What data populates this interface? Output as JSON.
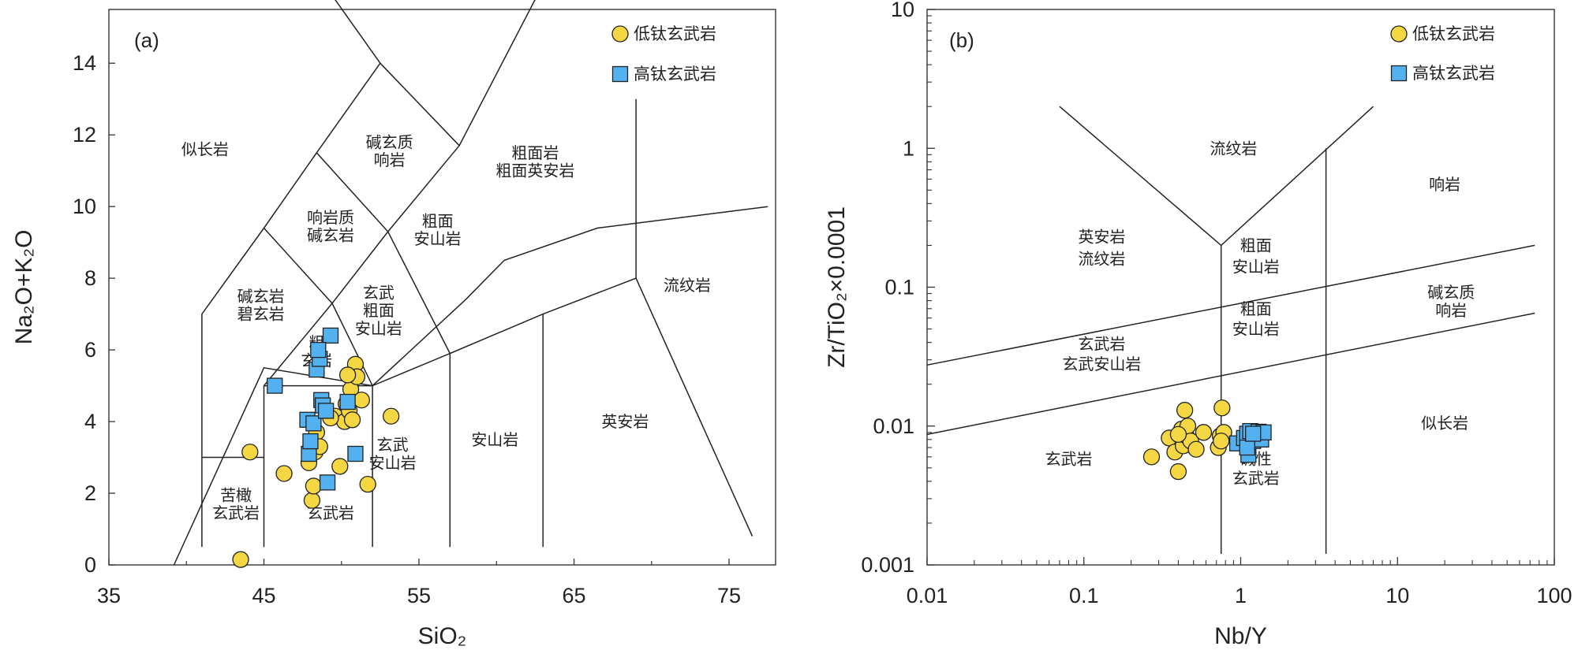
{
  "colors": {
    "low_ti": "#f5d743",
    "high_ti": "#52b1ee",
    "stroke": "#222222"
  },
  "legend": {
    "low_ti": "低钛玄武岩",
    "high_ti": "高钛玄武岩"
  },
  "chart_data": [
    {
      "type": "scatter",
      "panel": "(a)",
      "title": "",
      "xlabel": "SiO₂",
      "ylabel": "Na₂O+K₂O",
      "xlim": [
        35,
        78
      ],
      "ylim": [
        0,
        15.5
      ],
      "xticks": [
        "35",
        "45",
        "55",
        "65",
        "75"
      ],
      "yticks": [
        "0",
        "2",
        "4",
        "6",
        "8",
        "10",
        "12",
        "14"
      ],
      "field_labels": [
        {
          "text": "似长岩",
          "x": 41.2,
          "y": 11.6
        },
        {
          "text": "碱玄质",
          "x": 53.1,
          "y": 11.8
        },
        {
          "text": "响岩",
          "x": 53.1,
          "y": 11.3
        },
        {
          "text": "粗面岩",
          "x": 62.5,
          "y": 11.5
        },
        {
          "text": "粗面英安岩",
          "x": 62.5,
          "y": 11.0
        },
        {
          "text": "响岩质",
          "x": 49.3,
          "y": 9.7
        },
        {
          "text": "碱玄岩",
          "x": 49.3,
          "y": 9.2
        },
        {
          "text": "粗面",
          "x": 56.2,
          "y": 9.6
        },
        {
          "text": "安山岩",
          "x": 56.2,
          "y": 9.1
        },
        {
          "text": "碱玄岩",
          "x": 44.8,
          "y": 7.5
        },
        {
          "text": "碧玄岩",
          "x": 44.8,
          "y": 7.0
        },
        {
          "text": "玄武",
          "x": 52.4,
          "y": 7.6
        },
        {
          "text": "粗面",
          "x": 52.4,
          "y": 7.1
        },
        {
          "text": "安山岩",
          "x": 52.4,
          "y": 6.6
        },
        {
          "text": "粗",
          "x": 48.4,
          "y": 6.2
        },
        {
          "text": "玄岩",
          "x": 48.4,
          "y": 5.7
        },
        {
          "text": "流纹岩",
          "x": 72.3,
          "y": 7.8
        },
        {
          "text": "英安岩",
          "x": 68.3,
          "y": 4.0
        },
        {
          "text": "安山岩",
          "x": 59.9,
          "y": 3.5
        },
        {
          "text": "玄武",
          "x": 53.3,
          "y": 3.35
        },
        {
          "text": "安山岩",
          "x": 53.3,
          "y": 2.85
        },
        {
          "text": "苦橄",
          "x": 43.2,
          "y": 1.95
        },
        {
          "text": "玄武岩",
          "x": 43.2,
          "y": 1.45
        },
        {
          "text": "玄武岩",
          "x": 49.3,
          "y": 1.45
        }
      ],
      "series": [
        {
          "name": "低钛玄武岩",
          "marker": "circle",
          "x": [
            43.5,
            44.1,
            46.3,
            47.9,
            48.1,
            48.2,
            48.3,
            48.4,
            49.6,
            49.9,
            50.2,
            50.3,
            50.5,
            50.6,
            50.7,
            50.9,
            51.3,
            51.0,
            51.7,
            53.2,
            50.4,
            48.6,
            49.3
          ],
          "y": [
            0.15,
            3.15,
            2.55,
            2.85,
            1.8,
            2.2,
            3.15,
            3.7,
            4.15,
            2.75,
            4.0,
            4.5,
            4.3,
            4.9,
            4.05,
            5.6,
            4.6,
            5.25,
            2.25,
            4.15,
            5.3,
            3.3,
            4.1
          ]
        },
        {
          "name": "高钛玄武岩",
          "marker": "square",
          "x": [
            45.7,
            47.8,
            47.9,
            48.0,
            48.2,
            48.4,
            48.6,
            48.7,
            48.8,
            49.0,
            49.1,
            49.3,
            50.4,
            50.9,
            48.5
          ],
          "y": [
            5.0,
            4.05,
            3.1,
            3.45,
            3.95,
            5.45,
            5.75,
            4.6,
            4.45,
            4.3,
            2.3,
            6.4,
            4.55,
            3.1,
            6.0
          ]
        }
      ]
    },
    {
      "type": "scatter",
      "panel": "(b)",
      "title": "",
      "xlabel": "Nb/Y",
      "ylabel": "Zr/TiO₂×0.0001",
      "xscale": "log",
      "yscale": "log",
      "xlim": [
        0.01,
        100
      ],
      "ylim": [
        0.001,
        10
      ],
      "xticks": [
        "0.01",
        "0.1",
        "1",
        "10",
        "100"
      ],
      "yticks": [
        "0.001",
        "0.01",
        "0.1",
        "1",
        "10"
      ],
      "field_labels": [
        {
          "text": "流纹岩",
          "x": 0.9,
          "y": 1.0
        },
        {
          "text": "响岩",
          "x": 20,
          "y": 0.55
        },
        {
          "text": "英安岩",
          "x": 0.13,
          "y": 0.23
        },
        {
          "text": "流纹岩",
          "x": 0.13,
          "y": 0.16
        },
        {
          "text": "粗面",
          "x": 1.25,
          "y": 0.2
        },
        {
          "text": "安山岩",
          "x": 1.25,
          "y": 0.14
        },
        {
          "text": "碱玄质",
          "x": 22,
          "y": 0.092
        },
        {
          "text": "响岩",
          "x": 22,
          "y": 0.068
        },
        {
          "text": "粗面",
          "x": 1.25,
          "y": 0.07
        },
        {
          "text": "安山岩",
          "x": 1.25,
          "y": 0.05
        },
        {
          "text": "玄武岩",
          "x": 0.13,
          "y": 0.039
        },
        {
          "text": "玄武安山岩",
          "x": 0.13,
          "y": 0.028
        },
        {
          "text": "似长岩",
          "x": 20,
          "y": 0.0105
        },
        {
          "text": "玄武岩",
          "x": 0.08,
          "y": 0.0058
        },
        {
          "text": "碱性",
          "x": 1.25,
          "y": 0.0058
        },
        {
          "text": "玄武岩",
          "x": 1.25,
          "y": 0.0042
        }
      ],
      "series": [
        {
          "name": "低钛玄武岩",
          "marker": "circle",
          "x": [
            0.27,
            0.35,
            0.38,
            0.4,
            0.42,
            0.43,
            0.44,
            0.45,
            0.46,
            0.48,
            0.52,
            0.58,
            0.72,
            0.74,
            0.76,
            0.78,
            0.75,
            0.4
          ],
          "y": [
            0.006,
            0.0082,
            0.0065,
            0.0047,
            0.0095,
            0.0072,
            0.013,
            0.0085,
            0.01,
            0.0078,
            0.0068,
            0.009,
            0.007,
            0.0085,
            0.0135,
            0.009,
            0.0078,
            0.0087
          ]
        },
        {
          "name": "高钛玄武岩",
          "marker": "square",
          "x": [
            0.95,
            1.05,
            1.1,
            1.12,
            1.15,
            1.2,
            1.25,
            1.3,
            1.35,
            1.4,
            1.1,
            1.2
          ],
          "y": [
            0.0075,
            0.0082,
            0.0088,
            0.0062,
            0.0092,
            0.0078,
            0.0085,
            0.0091,
            0.008,
            0.009,
            0.007,
            0.0088
          ]
        }
      ]
    }
  ]
}
